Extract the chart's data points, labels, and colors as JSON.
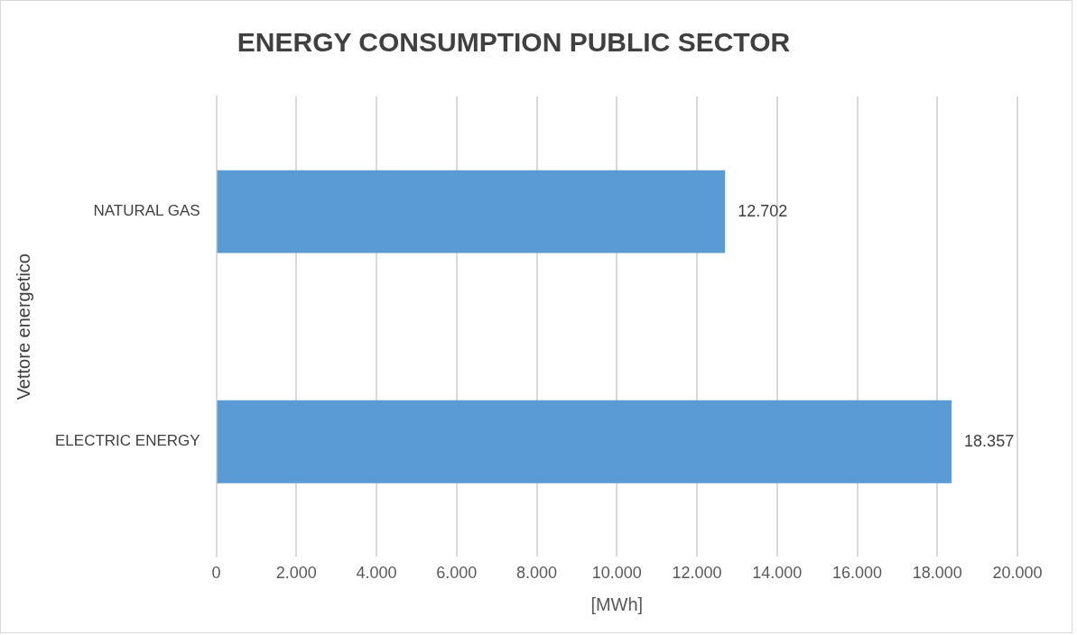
{
  "chart_data": {
    "type": "bar",
    "orientation": "horizontal",
    "title": "ENERGY CONSUMPTION PUBLIC SECTOR",
    "xlabel": "[MWh]",
    "ylabel": "Vettore energetico",
    "categories": [
      "NATURAL GAS",
      "ELECTRIC ENERGY"
    ],
    "values": [
      12702,
      18357
    ],
    "value_labels": [
      "12.702",
      "18.357"
    ],
    "color": "#5b9bd5",
    "xlim": [
      0,
      20000
    ],
    "xticks": [
      0,
      {
        "value": 2000,
        "label": "2.000"
      },
      {
        "value": 4000,
        "label": "4.000"
      },
      {
        "value": 6000,
        "label": "6.000"
      },
      {
        "value": 8000,
        "label": "8.000"
      },
      {
        "value": 10000,
        "label": "10.000"
      },
      {
        "value": 12000,
        "label": "12.000"
      },
      {
        "value": 14000,
        "label": "14.000"
      },
      {
        "value": 16000,
        "label": "16.000"
      },
      {
        "value": 18000,
        "label": "18.000"
      },
      {
        "value": 20000,
        "label": "20.000"
      }
    ],
    "grid": "x",
    "legend": false
  }
}
